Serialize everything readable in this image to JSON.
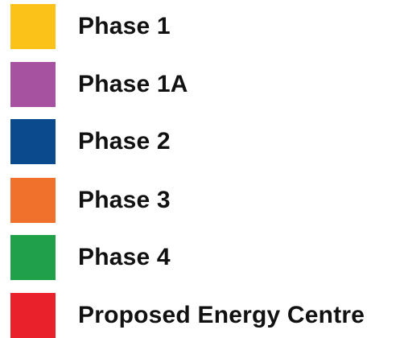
{
  "legend": {
    "items": [
      {
        "label": "Phase 1",
        "color": "#FBC31A"
      },
      {
        "label": "Phase 1A",
        "color": "#A652A0"
      },
      {
        "label": "Phase 2",
        "color": "#0B4A8C"
      },
      {
        "label": "Phase 3",
        "color": "#F0712B"
      },
      {
        "label": "Phase 4",
        "color": "#20A04B"
      },
      {
        "label": "Proposed Energy Centre",
        "color": "#E8212A"
      }
    ]
  }
}
